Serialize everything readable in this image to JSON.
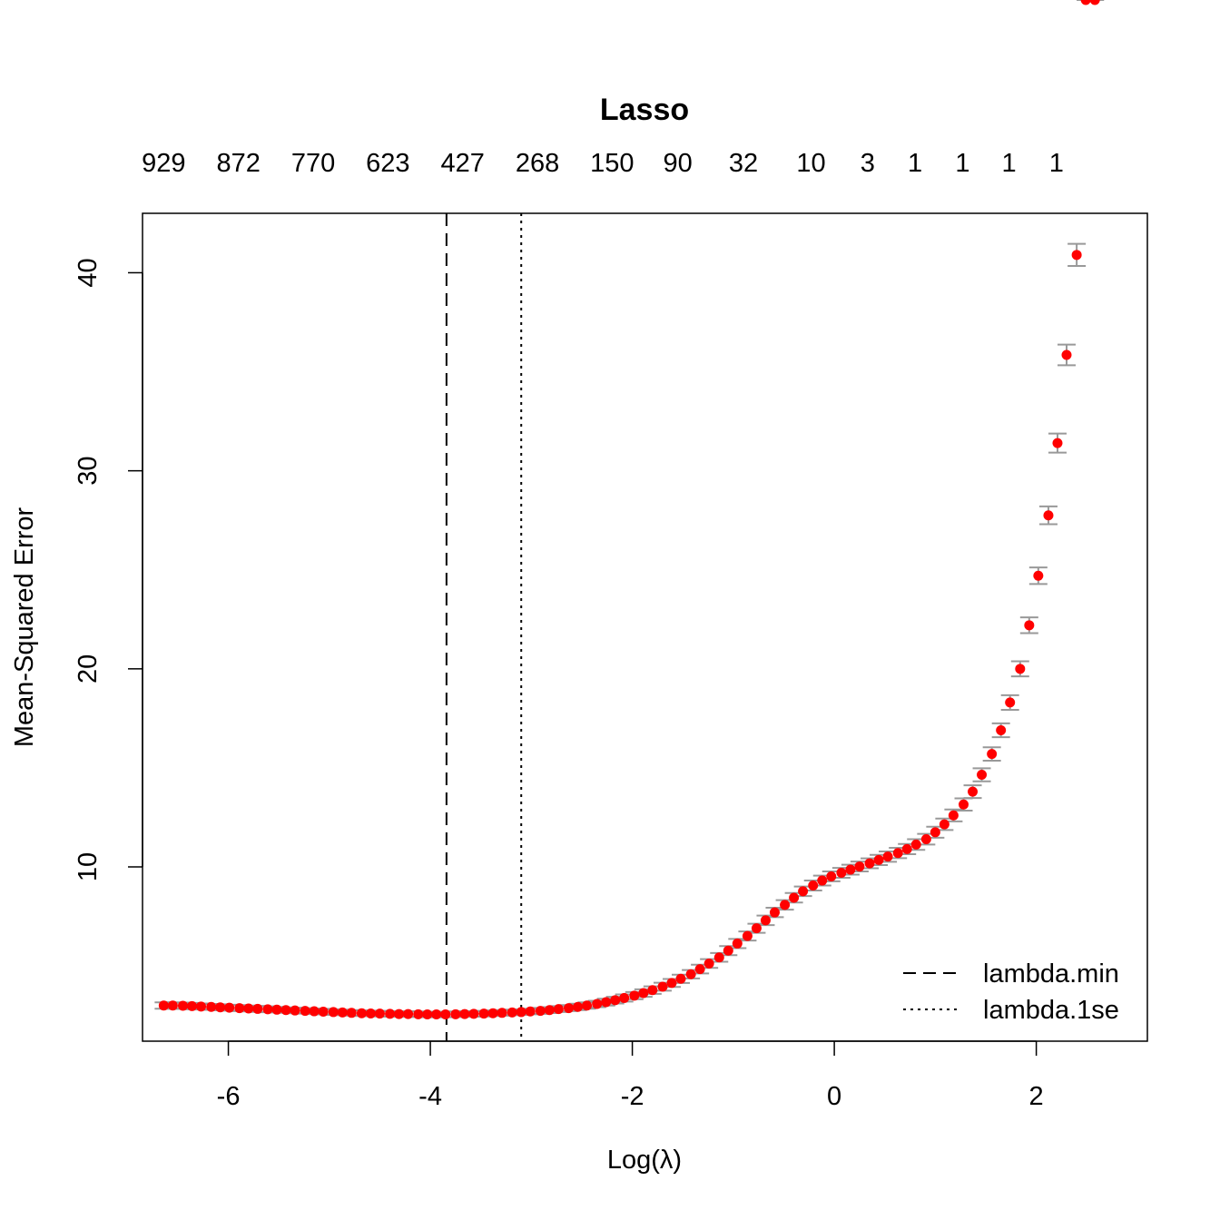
{
  "chart_data": {
    "type": "scatter",
    "title": "Lasso",
    "xlabel": "Log(λ)",
    "ylabel": "Mean-Squared Error",
    "xlim": [
      -6.85,
      3.1
    ],
    "ylim": [
      1.2,
      43.0
    ],
    "x_ticks": [
      -6,
      -4,
      -2,
      0,
      2
    ],
    "x_tick_labels": [
      "-6",
      "-4",
      "-2",
      "0",
      "2"
    ],
    "y_ticks": [
      10,
      20,
      30,
      40
    ],
    "y_tick_labels": [
      "10",
      "20",
      "30",
      "40"
    ],
    "top_axis": {
      "positions": [
        -6.64,
        -5.9,
        -5.16,
        -4.42,
        -3.68,
        -2.94,
        -2.2,
        -1.55,
        -0.9,
        -0.23,
        0.33,
        0.8,
        1.27,
        1.73,
        2.2
      ],
      "labels": [
        "929",
        "872",
        "770",
        "623",
        "427",
        "268",
        "150",
        "90",
        "32",
        "10",
        "3",
        "1",
        "1",
        "1",
        "1"
      ]
    },
    "grid": false,
    "point_color": "#ff0000",
    "errorbar_color": "#999999",
    "x": [
      -6.64,
      -6.55,
      -6.45,
      -6.36,
      -6.27,
      -6.17,
      -6.08,
      -5.99,
      -5.89,
      -5.8,
      -5.71,
      -5.61,
      -5.52,
      -5.43,
      -5.34,
      -5.24,
      -5.15,
      -5.06,
      -4.96,
      -4.87,
      -4.78,
      -4.68,
      -4.59,
      -4.5,
      -4.4,
      -4.31,
      -4.22,
      -4.12,
      -4.03,
      -3.94,
      -3.85,
      -3.75,
      -3.66,
      -3.57,
      -3.47,
      -3.38,
      -3.29,
      -3.19,
      -3.1,
      -3.01,
      -2.91,
      -2.82,
      -2.73,
      -2.63,
      -2.54,
      -2.45,
      -2.35,
      -2.26,
      -2.17,
      -2.08,
      -1.98,
      -1.89,
      -1.8,
      -1.7,
      -1.61,
      -1.52,
      -1.42,
      -1.33,
      -1.24,
      -1.14,
      -1.05,
      -0.96,
      -0.86,
      -0.77,
      -0.68,
      -0.59,
      -0.49,
      -0.4,
      -0.31,
      -0.21,
      -0.12,
      -0.03,
      0.07,
      0.16,
      0.25,
      0.35,
      0.44,
      0.53,
      0.63,
      0.72,
      0.81,
      0.91,
      1.0,
      1.09,
      1.18,
      1.28,
      1.37,
      1.46,
      1.56,
      1.65,
      1.74,
      1.84,
      1.93,
      2.02,
      2.12,
      2.21,
      2.3,
      2.4,
      2.49,
      2.58
    ],
    "series": [
      {
        "values": [
          3.0,
          3.0,
          2.99,
          2.97,
          2.95,
          2.93,
          2.91,
          2.89,
          2.87,
          2.85,
          2.83,
          2.81,
          2.79,
          2.77,
          2.75,
          2.73,
          2.71,
          2.69,
          2.67,
          2.65,
          2.63,
          2.61,
          2.6,
          2.59,
          2.58,
          2.57,
          2.57,
          2.56,
          2.55,
          2.55,
          2.55,
          2.56,
          2.57,
          2.58,
          2.59,
          2.61,
          2.63,
          2.65,
          2.67,
          2.7,
          2.73,
          2.77,
          2.82,
          2.87,
          2.93,
          3.0,
          3.08,
          3.17,
          3.27,
          3.38,
          3.5,
          3.63,
          3.78,
          3.95,
          4.14,
          4.35,
          4.58,
          4.84,
          5.12,
          5.43,
          5.77,
          6.13,
          6.51,
          6.9,
          7.3,
          7.7,
          8.08,
          8.44,
          8.77,
          9.06,
          9.31,
          9.52,
          9.7,
          9.86,
          10.02,
          10.18,
          10.35,
          10.52,
          10.7,
          10.9,
          11.13,
          11.4,
          11.75,
          12.15,
          12.6,
          13.15,
          13.8,
          14.65,
          15.7,
          16.9,
          18.3,
          20.0,
          22.2,
          24.7,
          27.75,
          31.4,
          35.85,
          40.9
        ],
        "errors": [
          0.16,
          0.16,
          0.16,
          0.16,
          0.15,
          0.15,
          0.15,
          0.15,
          0.15,
          0.15,
          0.15,
          0.15,
          0.14,
          0.14,
          0.14,
          0.14,
          0.14,
          0.14,
          0.14,
          0.14,
          0.14,
          0.14,
          0.14,
          0.14,
          0.14,
          0.14,
          0.14,
          0.14,
          0.14,
          0.14,
          0.14,
          0.14,
          0.14,
          0.14,
          0.14,
          0.14,
          0.14,
          0.14,
          0.14,
          0.14,
          0.15,
          0.15,
          0.15,
          0.15,
          0.16,
          0.16,
          0.16,
          0.17,
          0.17,
          0.18,
          0.18,
          0.19,
          0.19,
          0.2,
          0.2,
          0.21,
          0.21,
          0.22,
          0.22,
          0.22,
          0.23,
          0.23,
          0.23,
          0.23,
          0.24,
          0.24,
          0.24,
          0.24,
          0.24,
          0.25,
          0.25,
          0.25,
          0.25,
          0.25,
          0.25,
          0.25,
          0.26,
          0.26,
          0.26,
          0.26,
          0.27,
          0.27,
          0.28,
          0.29,
          0.3,
          0.31,
          0.32,
          0.33,
          0.34,
          0.35,
          0.37,
          0.38,
          0.4,
          0.42,
          0.45,
          0.48,
          0.52,
          0.56
        ]
      }
    ],
    "vlines": [
      {
        "x": -3.84,
        "style": "dashed"
      },
      {
        "x": -3.1,
        "style": "dotted"
      }
    ],
    "legend": {
      "placement": "bottom-right",
      "entries": [
        {
          "label": "lambda.min",
          "style": "dashed"
        },
        {
          "label": "lambda.1se",
          "style": "dotted"
        }
      ]
    }
  }
}
